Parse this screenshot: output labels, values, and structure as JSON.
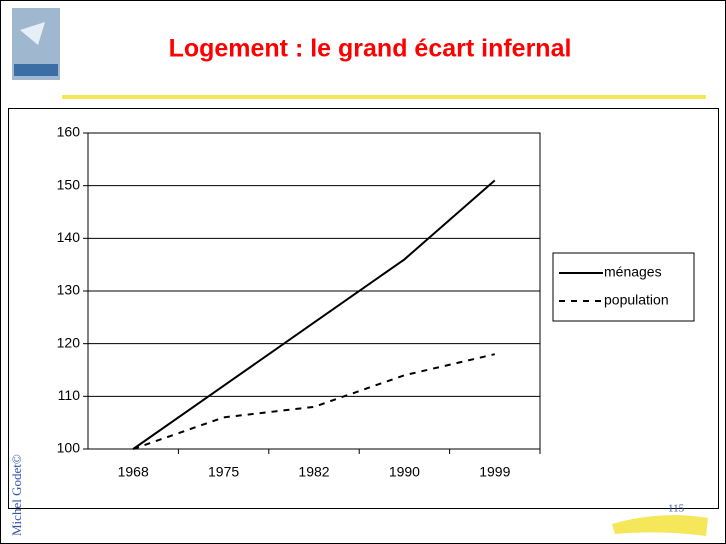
{
  "slide": {
    "title": "Logement : le grand écart infernal",
    "author": "Michel Godet©",
    "page_number": "115"
  },
  "chart_data": {
    "type": "line",
    "categories": [
      "1968",
      "1975",
      "1982",
      "1990",
      "1999"
    ],
    "series": [
      {
        "name": "ménages",
        "color": "#000000",
        "style": "solid",
        "values": [
          100,
          112,
          124,
          136,
          151
        ]
      },
      {
        "name": "population",
        "color": "#000000",
        "style": "dashed",
        "values": [
          100,
          106,
          108,
          114,
          118
        ]
      }
    ],
    "ylim": [
      100,
      160
    ],
    "yticks": [
      100,
      110,
      120,
      130,
      140,
      150,
      160
    ],
    "grid": true,
    "legend": "right"
  }
}
